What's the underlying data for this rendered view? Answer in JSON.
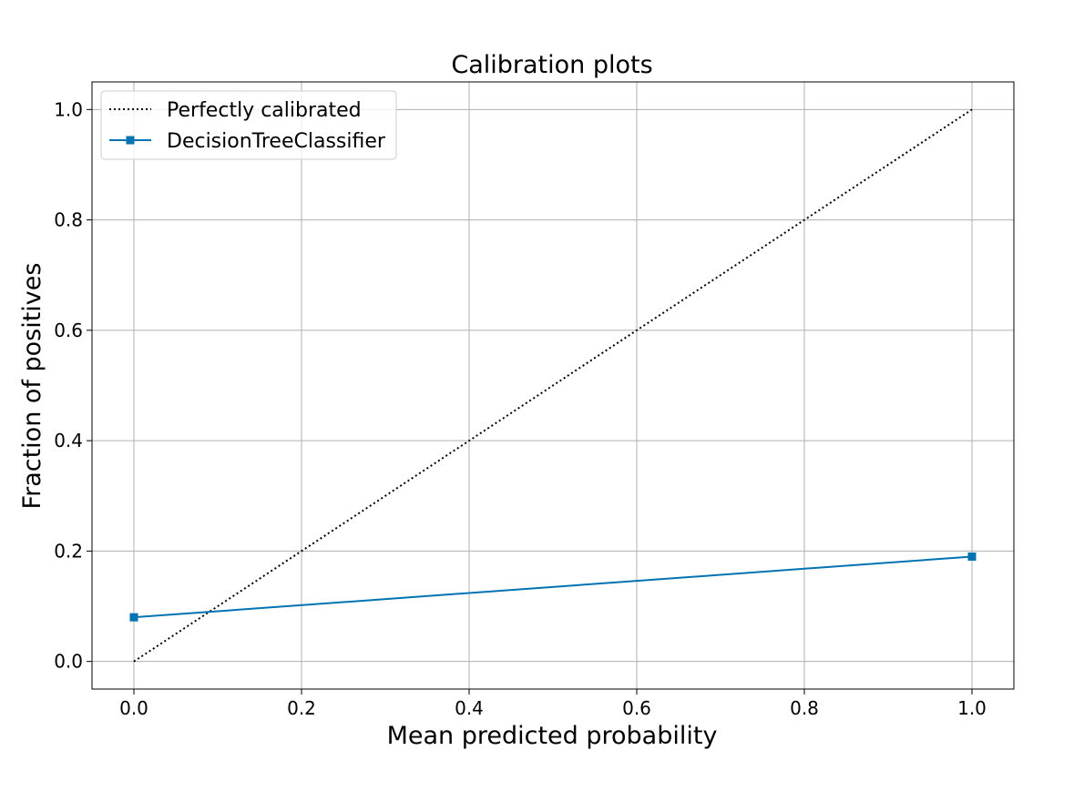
{
  "chart_data": {
    "type": "line",
    "title": "Calibration plots",
    "xlabel": "Mean predicted probability",
    "ylabel": "Fraction of positives",
    "xlim": [
      -0.05,
      1.05
    ],
    "ylim": [
      -0.05,
      1.05
    ],
    "xticks": [
      "0.0",
      "0.2",
      "0.4",
      "0.6",
      "0.8",
      "1.0"
    ],
    "yticks": [
      "0.0",
      "0.2",
      "0.4",
      "0.6",
      "0.8",
      "1.0"
    ],
    "grid": true,
    "legend_position": "top-left",
    "series": [
      {
        "name": "Perfectly calibrated",
        "style": "dotted",
        "color": "#000000",
        "marker": "none",
        "x": [
          0.0,
          1.0
        ],
        "y": [
          0.0,
          1.0
        ]
      },
      {
        "name": "DecisionTreeClassifier",
        "style": "solid",
        "color": "#0173b2",
        "marker": "square",
        "x": [
          0.0,
          1.0
        ],
        "y": [
          0.08,
          0.19
        ]
      }
    ]
  }
}
